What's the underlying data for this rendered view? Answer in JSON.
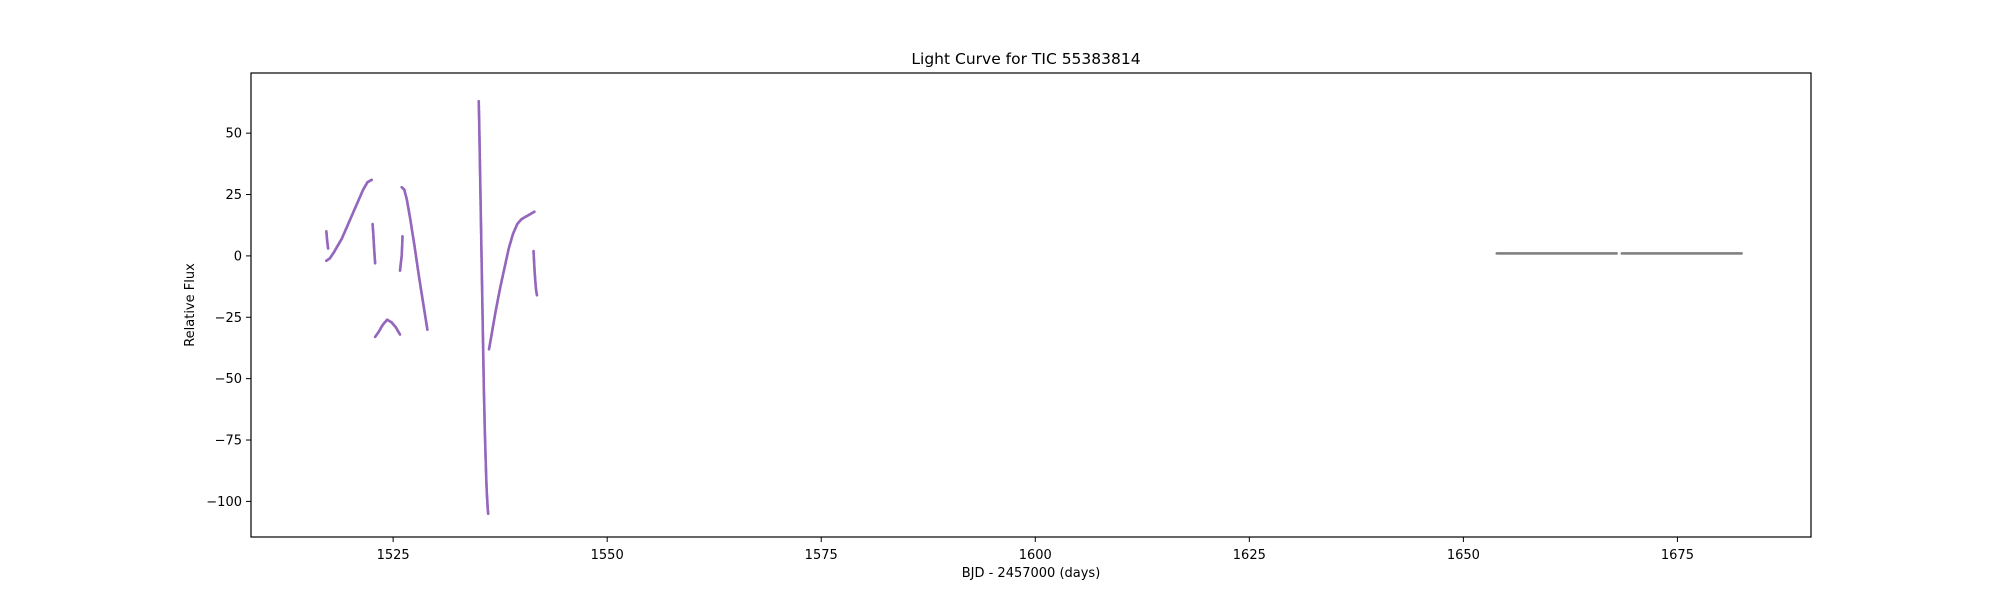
{
  "chart_data": {
    "type": "scatter",
    "title": "Light Curve for TIC 55383814",
    "xlabel": "BJD - 2457000 (days)",
    "ylabel": "Relative Flux",
    "xlim": [
      1508.4,
      1690.6
    ],
    "ylim": [
      -114.5,
      74.5
    ],
    "x_ticks": [
      1525,
      1550,
      1575,
      1600,
      1625,
      1650,
      1675
    ],
    "x_tick_labels": [
      "1525",
      "1550",
      "1575",
      "1600",
      "1625",
      "1650",
      "1675"
    ],
    "y_ticks": [
      50,
      25,
      0,
      -25,
      -50,
      -75,
      -100
    ],
    "y_tick_labels": [
      "50",
      "25",
      "0",
      "−25",
      "−50",
      "−75",
      "−100"
    ],
    "grid": false,
    "colors": {
      "primary": "#9467bd",
      "secondary": "#808080"
    },
    "series": [
      {
        "color": "#9467bd",
        "segments": [
          {
            "x": [
              1517.2,
              1517.6,
              1518.0,
              1518.5,
              1519.0,
              1519.5,
              1520.0,
              1520.5,
              1521.0,
              1521.5,
              1522.0,
              1522.5
            ],
            "y": [
              -2,
              -1,
              1,
              4,
              7,
              11,
              15,
              19,
              23,
              27,
              30,
              31
            ]
          },
          {
            "x": [
              1517.2,
              1517.3,
              1517.4
            ],
            "y": [
              10,
              6,
              3
            ]
          },
          {
            "x": [
              1522.6,
              1522.7,
              1522.8,
              1522.9
            ],
            "y": [
              13,
              8,
              2,
              -3
            ]
          },
          {
            "x": [
              1522.9,
              1523.3,
              1523.8,
              1524.3,
              1524.8,
              1525.3,
              1525.8
            ],
            "y": [
              -33,
              -31,
              -28,
              -26,
              -27,
              -29,
              -32
            ]
          },
          {
            "x": [
              1525.8,
              1525.9,
              1526.0,
              1526.1
            ],
            "y": [
              -6,
              -3,
              0,
              8
            ]
          },
          {
            "x": [
              1526.0,
              1526.3,
              1526.6,
              1527.0,
              1527.5,
              1528.0,
              1528.5,
              1529.0
            ],
            "y": [
              28,
              27,
              23,
              15,
              4,
              -8,
              -19,
              -30
            ]
          },
          {
            "x": [
              1535.0,
              1535.05,
              1535.1,
              1535.15,
              1535.2,
              1535.25,
              1535.3,
              1535.35,
              1535.4,
              1535.45,
              1535.5,
              1535.55,
              1535.6,
              1535.65,
              1535.7,
              1535.75,
              1535.8,
              1535.85,
              1535.9,
              1535.95,
              1536.0,
              1536.05,
              1536.1
            ],
            "y": [
              63,
              55,
              45,
              35,
              25,
              15,
              5,
              -5,
              -15,
              -25,
              -35,
              -45,
              -55,
              -62,
              -70,
              -76,
              -82,
              -88,
              -93,
              -97,
              -100,
              -103,
              -105
            ]
          },
          {
            "x": [
              1536.2,
              1536.6,
              1537.0,
              1537.5,
              1538.0,
              1538.5,
              1539.0,
              1539.5,
              1540.0,
              1540.5,
              1541.0,
              1541.5
            ],
            "y": [
              -38,
              -30,
              -22,
              -13,
              -5,
              3,
              9,
              13,
              15,
              16,
              17,
              18
            ]
          },
          {
            "x": [
              1541.4,
              1541.5,
              1541.6,
              1541.7,
              1541.8
            ],
            "y": [
              2,
              -5,
              -10,
              -14,
              -16
            ]
          }
        ]
      },
      {
        "color": "#808080",
        "segments": [
          {
            "x": [
              1653.9,
              1667.9
            ],
            "y": [
              1.0,
              1.0
            ]
          },
          {
            "x": [
              1668.5,
              1682.5
            ],
            "y": [
              1.0,
              1.0
            ]
          }
        ]
      }
    ]
  }
}
